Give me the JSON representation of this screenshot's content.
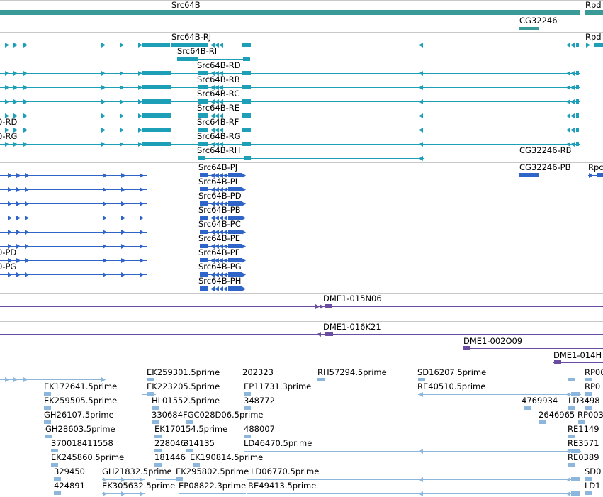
{
  "colors": {
    "gene": "#3a9a98",
    "mrna": "#1e9fb8",
    "protein": "#2f65c8",
    "clone": "#6a4da0",
    "est": "#8cb6dc",
    "divider": "#c8c8c8"
  },
  "tracks": {
    "genes": [
      {
        "name": "Src64B",
        "type": "gene"
      },
      {
        "name": "CG32246",
        "type": "gene"
      },
      {
        "name": "Rpd",
        "type": "gene"
      }
    ],
    "transcripts": [
      "Src64B-RJ",
      "Src64B-RI",
      "Src64B-RD",
      "Src64B-RB",
      "Src64B-RC",
      "Src64B-RE",
      "Src64B-RF",
      "Src64B-RG",
      "Src64B-RH",
      "CG32246-RB",
      "Rpd",
      "0-RD",
      "0-RG"
    ],
    "proteins": [
      "Src64B-PJ",
      "Src64B-PI",
      "Src64B-PD",
      "Src64B-PB",
      "Src64B-PC",
      "Src64B-PE",
      "Src64B-PF",
      "Src64B-PG",
      "Src64B-PH",
      "CG32246-PB",
      "Rpc",
      "0-PD",
      "0-PG"
    ],
    "clones": [
      "DME1-015N06",
      "DME1-016K21",
      "DME1-002O09",
      "DME1-014H"
    ],
    "ests": [
      "EK259301.5prime",
      "202323",
      "RH57294.5prime",
      "SD16207.5prime",
      "RP00",
      "EK172641.5prime",
      "EK223205.5prime",
      "EP11731.3prime",
      "RE40510.5prime",
      "RP0",
      "EK259505.5prime",
      "HL01552.5prime",
      "348772",
      "4769934",
      "LD3498",
      "GH26107.5prime",
      "330684",
      "FGC028D06.5prime",
      "2646965",
      "RP003",
      "GH28603.5prime",
      "EK170154.5prime",
      "488007",
      "RE1149",
      "370018411558",
      "228046",
      "314135",
      "LD46470.5prime",
      "RE3571",
      "EK245860.5prime",
      "181446",
      "EK190814.5prime",
      "RE0389",
      "329450",
      "GH21832.5prime",
      "EK295802.5prime",
      "LD06770.5prime",
      "SD0",
      "424891",
      "EK305632.5prime",
      "EP08822.3prime",
      "RE49413.5prime",
      "LD1"
    ]
  }
}
